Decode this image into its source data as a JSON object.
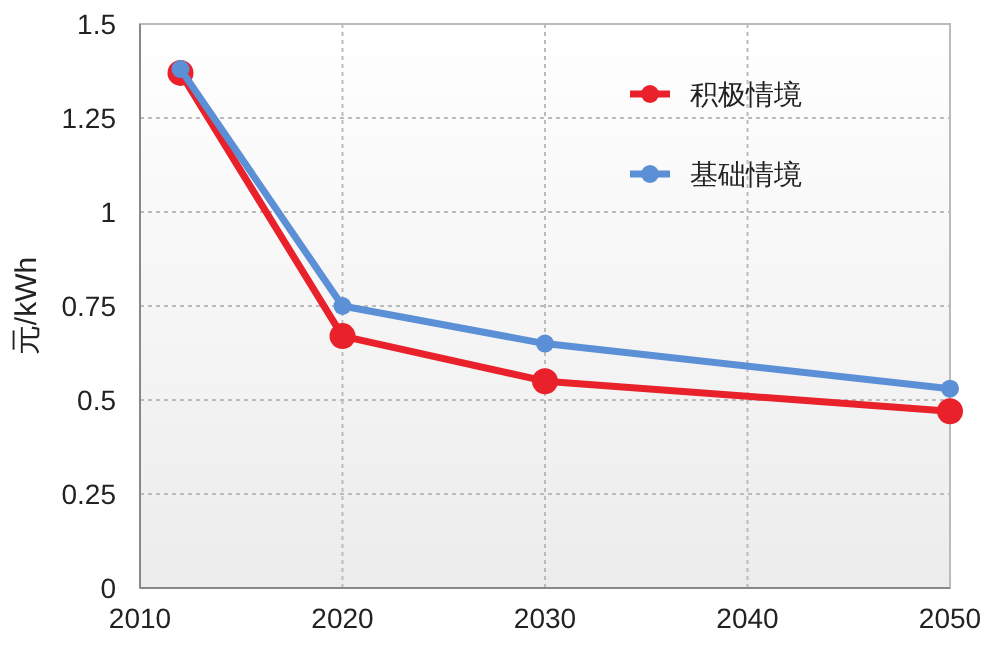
{
  "chart_data": {
    "type": "line",
    "ylabel": "元/kWh",
    "x": [
      2012,
      2020,
      2030,
      2050
    ],
    "series": [
      {
        "name": "积极情境",
        "color": "#e8212b",
        "values": [
          1.37,
          0.67,
          0.55,
          0.47
        ]
      },
      {
        "name": "基础情境",
        "color": "#5b8fd6",
        "values": [
          1.38,
          0.75,
          0.65,
          0.53
        ]
      }
    ],
    "xlim": [
      2010,
      2050
    ],
    "xticks": [
      2010,
      2020,
      2030,
      2040,
      2050
    ],
    "ylim": [
      0,
      1.5
    ],
    "yticks": [
      0,
      {
        "value": 0.25,
        "label": "0.25"
      },
      {
        "value": 0.5,
        "label": "0.5"
      },
      {
        "value": 0.75,
        "label": "0.75"
      },
      1,
      {
        "value": 1.25,
        "label": "1.25"
      },
      1.5
    ],
    "grid": true,
    "legend": "top right",
    "marker": "circle",
    "line_style": "solid"
  }
}
